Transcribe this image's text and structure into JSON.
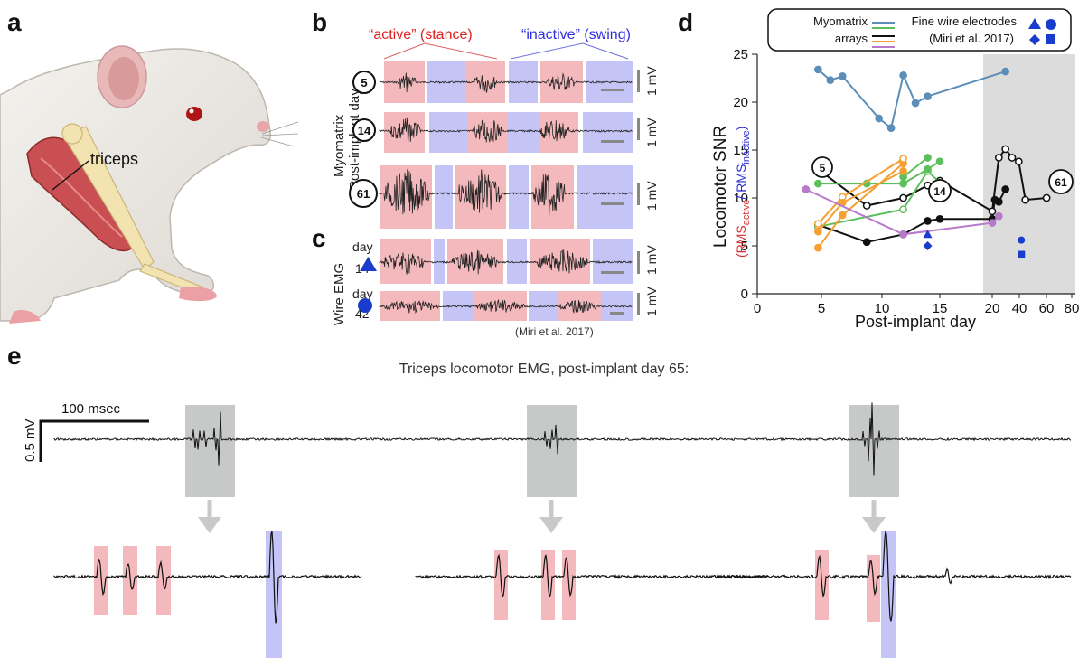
{
  "panels": {
    "a": "a",
    "b": "b",
    "c": "c",
    "d": "d",
    "e": "e"
  },
  "panel_a": {
    "muscle_label": "triceps"
  },
  "panel_b": {
    "active_label": "“active” (stance)",
    "inactive_label": "“inactive” (swing)",
    "ylabel_1": "Myomatrix",
    "ylabel_2": "Post-implant day",
    "days": [
      "5",
      "14",
      "61"
    ],
    "scale_labels": [
      "1 mV",
      "1 mV",
      "1 mV"
    ]
  },
  "panel_c": {
    "ylabel": "Wire EMG",
    "row1": {
      "day_word": "day",
      "day": "14"
    },
    "row2": {
      "day_word": "day",
      "day": "42"
    },
    "scale_labels": [
      "1 mV",
      "1 mV"
    ],
    "citation": "(Miri et al. 2017)"
  },
  "panel_d": {
    "legend": {
      "myomatrix_1": "Myomatrix",
      "myomatrix_2": "arrays",
      "fine_1": "Fine wire electrodes",
      "fine_2": "(Miri et al. 2017)"
    },
    "ylabel": "Locomotor SNR",
    "ylabel_sub_prefix": "(RMS",
    "ylabel_sub_active": "active",
    "ylabel_sub_slash": "/ RMS",
    "ylabel_sub_inactive": "inactive",
    "ylabel_sub_suffix": ")",
    "xlabel": "Post-implant day",
    "xticks_left": [
      "0",
      "5",
      "10",
      "15"
    ],
    "xticks_right": [
      "20",
      "40",
      "60",
      "80"
    ],
    "yticks": [
      "0",
      "5",
      "10",
      "15",
      "20",
      "25"
    ],
    "callouts": [
      "5",
      "14",
      "61"
    ],
    "colors": {
      "blue_series": "#5b8fb9",
      "black_series": "#111111",
      "green_series": "#5cbf5c",
      "orange_series": "#f5a030",
      "purple_series": "#b779c9",
      "wire": "#1a3ccc",
      "shade": "#dcdcdc"
    }
  },
  "chart_data": {
    "type": "line",
    "title": "",
    "xlabel": "Post-implant day",
    "ylabel": "Locomotor SNR",
    "ylim": [
      0,
      25
    ],
    "x_axis_break": "linear 0-17, compressed 18-80",
    "grid": false,
    "legend_position": "top",
    "series": [
      {
        "color": "#5b8fb9",
        "x": [
          5,
          6,
          7,
          10,
          11,
          12,
          13,
          14,
          30
        ],
        "y": [
          23.4,
          22.3,
          22.7,
          18.3,
          17.3,
          22.8,
          19.9,
          20.6,
          23.2
        ]
      },
      {
        "color": "#111111",
        "x": [
          5,
          9,
          12,
          14,
          15,
          20,
          22,
          25,
          30
        ],
        "y": [
          7.2,
          5.4,
          6.2,
          7.6,
          7.8,
          7.8,
          9.8,
          9.6,
          10.9
        ]
      },
      {
        "color": "#111111",
        "x": [
          5,
          9,
          12,
          14,
          15,
          20,
          25,
          30,
          35,
          40,
          45,
          61
        ],
        "y": [
          13,
          9.2,
          10,
          11.3,
          11.8,
          8.6,
          14.2,
          15.1,
          14.2,
          13.8,
          9.8,
          10
        ]
      },
      {
        "color": "#5cbf5c",
        "x": [
          5,
          12,
          14,
          15
        ],
        "y": [
          7,
          8.8,
          12.8,
          11.6
        ]
      },
      {
        "color": "#5cbf5c",
        "x": [
          5,
          9,
          12,
          14,
          15
        ],
        "y": [
          11.5,
          11.5,
          11.5,
          13,
          13.8
        ]
      },
      {
        "color": "#5cbf5c",
        "x": [
          12,
          14
        ],
        "y": [
          12.2,
          14.2
        ]
      },
      {
        "color": "#f5a030",
        "x": [
          5,
          7,
          12
        ],
        "y": [
          4.8,
          8.2,
          13.6
        ]
      },
      {
        "color": "#f5a030",
        "x": [
          5,
          7,
          12
        ],
        "y": [
          7.3,
          10.1,
          14.1
        ]
      },
      {
        "color": "#f5a030",
        "x": [
          5,
          7,
          12
        ],
        "y": [
          6.5,
          9.5,
          12.8
        ]
      },
      {
        "color": "#b779c9",
        "x": [
          4,
          12,
          20,
          25
        ],
        "y": [
          10.9,
          6.2,
          7.4,
          8.1
        ]
      },
      {
        "color": "#1a3ccc",
        "x": [
          14
        ],
        "y": [
          6.2
        ]
      },
      {
        "color": "#1a3ccc",
        "x": [
          14
        ],
        "y": [
          5
        ]
      },
      {
        "color": "#1a3ccc",
        "x": [
          42
        ],
        "y": [
          5.6
        ]
      },
      {
        "color": "#1a3ccc",
        "x": [
          42
        ],
        "y": [
          4.1
        ]
      }
    ]
  },
  "panel_e": {
    "title": "Triceps locomotor EMG, post-implant day 65:",
    "time_scale": "100 msec",
    "volt_scale": "0.5 mV"
  }
}
